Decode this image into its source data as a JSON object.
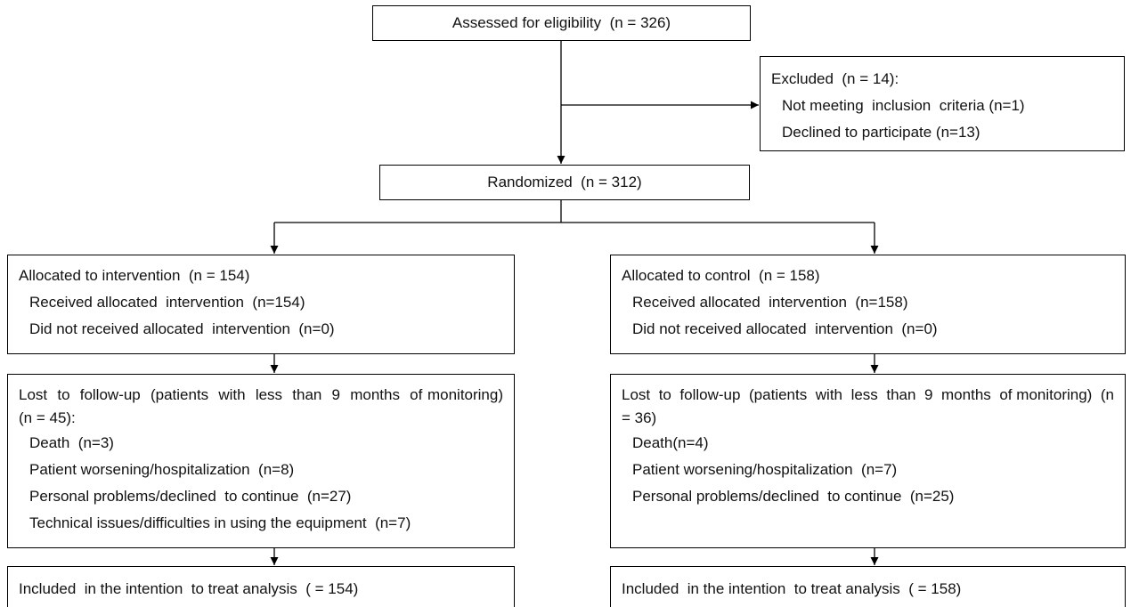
{
  "boxes": [
    {
      "title": "Assessed for eligibility  (n = 326)"
    },
    {
      "title": "Excluded  (n = 14):",
      "items": [
        "Not meeting  inclusion  criteria (n=1)",
        "Declined to participate (n=13)"
      ]
    },
    {
      "title": "Randomized  (n = 312)"
    },
    {
      "title": "Allocated to intervention  (n = 154)",
      "items": [
        "Received allocated  intervention  (n=154)",
        "Did not received allocated  intervention  (n=0)"
      ]
    },
    {
      "title": "Allocated to control  (n = 158)",
      "items": [
        "Received allocated  intervention  (n=158)",
        "Did not received allocated  intervention  (n=0)"
      ]
    },
    {
      "title": "Lost  to  follow-up  (patients  with  less  than  9  months  of monitoring)  (n = 45):",
      "items": [
        "Death  (n=3)",
        "Patient worsening/hospitalization  (n=8)",
        "Personal problems/declined  to continue  (n=27)",
        "Technical issues/difficulties in using the equipment  (n=7)"
      ]
    },
    {
      "title": "Lost  to  follow-up  (patients  with  less  than  9  months  of monitoring)  (n = 36)",
      "items": [
        "Death(n=4)",
        "Patient worsening/hospitalization  (n=7)",
        "Personal problems/declined  to continue  (n=25)"
      ]
    },
    {
      "title": "Included  in the intention  to treat analysis  ( = 154)"
    },
    {
      "title": "Included  in the intention  to treat analysis  ( = 158)"
    }
  ]
}
